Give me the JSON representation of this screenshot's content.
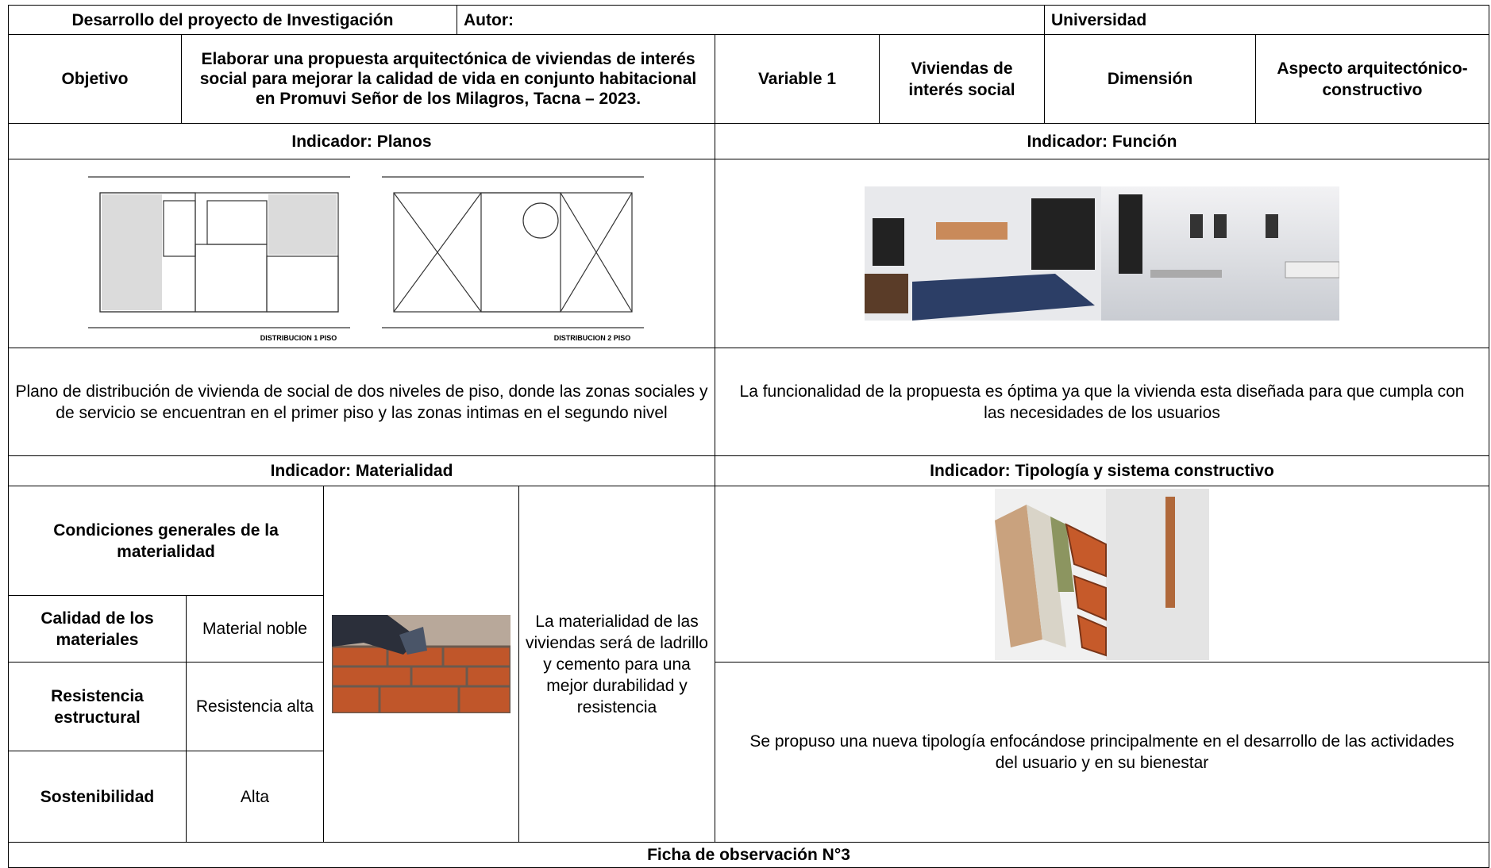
{
  "header": {
    "title": "Desarrollo del proyecto de Investigación",
    "author_label": "Autor:",
    "university_label": "Universidad"
  },
  "objective": {
    "label": "Objetivo",
    "text": "Elaborar una propuesta arquitectónica de viviendas de interés social para mejorar la calidad de vida en conjunto habitacional en Promuvi Señor de los Milagros, Tacna – 2023."
  },
  "variable": {
    "label": "Variable 1",
    "value": "Viviendas de interés social"
  },
  "dimension": {
    "label": "Dimensión",
    "value": "Aspecto arquitectónico-constructivo"
  },
  "indicator_planos": {
    "title": "Indicador: Planos",
    "plan_labels": [
      "DISTRIBUCION 1 PISO",
      "DISTRIBUCION 2 PISO"
    ],
    "description": "Plano de distribución de vivienda de social de dos niveles de piso, donde las zonas sociales y de servicio se encuentran en el primer piso y las zonas intimas en el segundo nivel"
  },
  "indicator_funcion": {
    "title": "Indicador: Función",
    "description": "La funcionalidad de la propuesta es óptima ya que la vivienda esta diseñada para que cumpla con las necesidades de los usuarios"
  },
  "indicator_materialidad": {
    "title": "Indicador: Materialidad",
    "heading": "Condiciones generales de la materialidad",
    "rows": [
      [
        "Calidad de los materiales",
        "Material noble"
      ],
      [
        "Resistencia estructural",
        "Resistencia alta"
      ],
      [
        "Sostenibilidad",
        "Alta"
      ]
    ],
    "description": "La materialidad de las viviendas será de ladrillo y cemento para una mejor durabilidad y resistencia"
  },
  "indicator_tipologia": {
    "title": "Indicador: Tipología y sistema constructivo",
    "description": "Se propuso una nueva tipología enfocándose principalmente en el desarrollo de las actividades del usuario y en su bienestar"
  },
  "footer": {
    "title": "Ficha de observación N°3"
  }
}
